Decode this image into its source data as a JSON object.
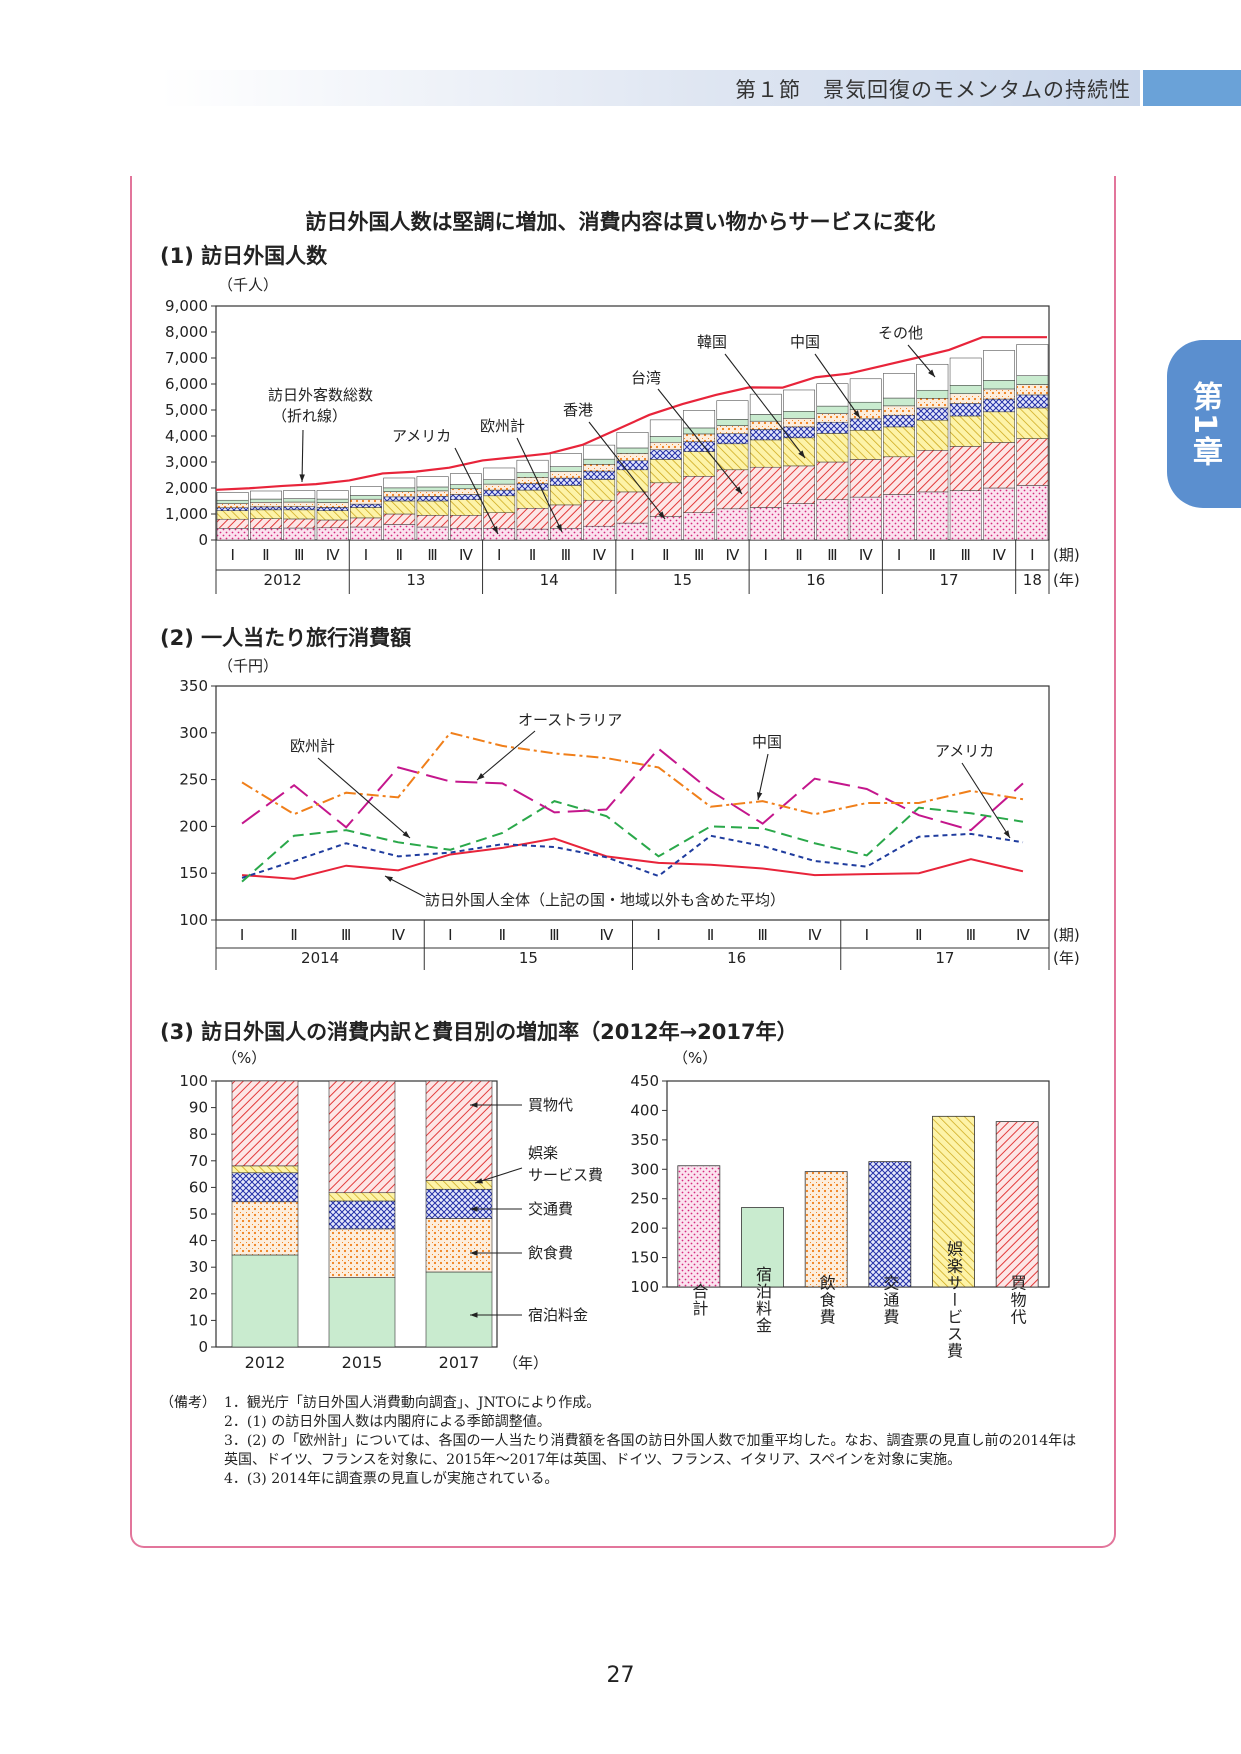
{
  "header": {
    "section": "第１節　景気回復のモメンタムの持続性",
    "chapter_tab": "第1章"
  },
  "figure": {
    "title": "訪日外国人数は堅調に増加、消費内容は買い物からサービスに変化",
    "sec1": "(1) 訪日外国人数",
    "sec2": "(2) 一人当たり旅行消費額",
    "sec3": "(3) 訪日外国人の消費内訳と費目別の増加率（2012年→2017年）"
  },
  "chart_data": [
    {
      "type": "bar",
      "stacked": true,
      "unit": "（千人）",
      "ylim": [
        0,
        9000
      ],
      "yticks": [
        0,
        1000,
        2000,
        3000,
        4000,
        5000,
        6000,
        7000,
        8000,
        9000
      ],
      "ytick_labels": [
        "0",
        "1,000",
        "2,000",
        "3,000",
        "4,000",
        "5,000",
        "6,000",
        "7,000",
        "8,000",
        "9,000"
      ],
      "quarters": [
        "Ⅰ",
        "Ⅱ",
        "Ⅲ",
        "Ⅳ",
        "Ⅰ",
        "Ⅱ",
        "Ⅲ",
        "Ⅳ",
        "Ⅰ",
        "Ⅱ",
        "Ⅲ",
        "Ⅳ",
        "Ⅰ",
        "Ⅱ",
        "Ⅲ",
        "Ⅳ",
        "Ⅰ",
        "Ⅱ",
        "Ⅲ",
        "Ⅳ",
        "Ⅰ",
        "Ⅱ",
        "Ⅲ",
        "Ⅳ",
        "Ⅰ"
      ],
      "years": [
        {
          "label": "2012",
          "span": 4
        },
        {
          "label": "13",
          "span": 4
        },
        {
          "label": "14",
          "span": 4
        },
        {
          "label": "15",
          "span": 4
        },
        {
          "label": "16",
          "span": 4
        },
        {
          "label": "17",
          "span": 4
        },
        {
          "label": "18",
          "span": 1
        }
      ],
      "x_unit_quarter": "(期)",
      "x_unit_year": "(年)",
      "series": [
        {
          "name": "その他",
          "pattern": "white",
          "values": [
            300,
            310,
            320,
            330,
            350,
            380,
            400,
            420,
            450,
            480,
            510,
            540,
            600,
            640,
            680,
            720,
            780,
            820,
            860,
            900,
            950,
            1000,
            1050,
            1150,
            1200
          ]
        },
        {
          "name": "欧州計",
          "pattern": "green",
          "values": [
            120,
            125,
            130,
            135,
            140,
            145,
            150,
            160,
            170,
            180,
            190,
            200,
            210,
            220,
            230,
            240,
            260,
            270,
            280,
            290,
            300,
            310,
            320,
            330,
            340
          ]
        },
        {
          "name": "アメリカ",
          "pattern": "orange",
          "values": [
            170,
            175,
            180,
            185,
            190,
            200,
            210,
            220,
            230,
            240,
            250,
            260,
            280,
            290,
            300,
            310,
            320,
            330,
            340,
            350,
            360,
            370,
            380,
            390,
            400
          ]
        },
        {
          "name": "香港",
          "pattern": "blue",
          "values": [
            110,
            115,
            120,
            125,
            130,
            160,
            180,
            200,
            220,
            250,
            280,
            320,
            350,
            370,
            380,
            390,
            400,
            420,
            430,
            440,
            450,
            470,
            480,
            490,
            500
          ]
        },
        {
          "name": "台湾",
          "pattern": "yellow",
          "values": [
            330,
            340,
            350,
            360,
            400,
            500,
            550,
            600,
            650,
            700,
            750,
            800,
            850,
            900,
            950,
            1000,
            1050,
            1080,
            1100,
            1120,
            1150,
            1160,
            1170,
            1180,
            1180
          ]
        },
        {
          "name": "中国",
          "pattern": "red",
          "values": [
            350,
            370,
            350,
            300,
            350,
            400,
            450,
            500,
            600,
            800,
            900,
            1000,
            1200,
            1300,
            1400,
            1500,
            1550,
            1450,
            1450,
            1450,
            1450,
            1600,
            1700,
            1750,
            1800
          ]
        },
        {
          "name": "韓国",
          "pattern": "pink",
          "values": [
            450,
            450,
            460,
            470,
            500,
            600,
            500,
            450,
            450,
            420,
            450,
            530,
            650,
            900,
            1050,
            1200,
            1250,
            1400,
            1550,
            1650,
            1750,
            1850,
            1900,
            2000,
            2100
          ]
        }
      ],
      "total": {
        "name": "訪日外客数総数（折れ線）",
        "values": [
          1930,
          1990,
          2080,
          2150,
          2290,
          2560,
          2630,
          2780,
          3060,
          3190,
          3330,
          3660,
          4230,
          4810,
          5230,
          5580,
          5870,
          5860,
          6260,
          6400,
          6700,
          7000,
          7310,
          7800,
          7800
        ]
      },
      "annotations": [
        "訪日外客数総数\n（折れ線）",
        "アメリカ",
        "欧州計",
        "香港",
        "台湾",
        "韓国",
        "中国",
        "その他"
      ]
    },
    {
      "type": "line",
      "unit": "（千円）",
      "ylim": [
        100,
        350
      ],
      "yticks": [
        100,
        150,
        200,
        250,
        300,
        350
      ],
      "quarters": [
        "Ⅰ",
        "Ⅱ",
        "Ⅲ",
        "Ⅳ",
        "Ⅰ",
        "Ⅱ",
        "Ⅲ",
        "Ⅳ",
        "Ⅰ",
        "Ⅱ",
        "Ⅲ",
        "Ⅳ",
        "Ⅰ",
        "Ⅱ",
        "Ⅲ",
        "Ⅳ"
      ],
      "years": [
        {
          "label": "2014",
          "span": 4
        },
        {
          "label": "15",
          "span": 4
        },
        {
          "label": "16",
          "span": 4
        },
        {
          "label": "17",
          "span": 4
        }
      ],
      "x_unit_quarter": "(期)",
      "x_unit_year": "(年)",
      "series": [
        {
          "name": "訪日外国人全体（上記の国・地域以外も含めた平均）",
          "color": "#e8243a",
          "dash": "",
          "values": [
            148,
            144,
            158,
            153,
            170,
            177,
            187,
            168,
            161,
            159,
            155,
            148,
            149,
            150,
            165,
            152
          ]
        },
        {
          "name": "アメリカ",
          "color": "#1f3c9e",
          "dash": "5,4",
          "values": [
            145,
            163,
            182,
            168,
            172,
            181,
            178,
            167,
            147,
            190,
            179,
            163,
            157,
            189,
            192,
            183
          ]
        },
        {
          "name": "欧州計",
          "color": "#2aa84a",
          "dash": "11,6",
          "values": [
            141,
            190,
            196,
            183,
            175,
            193,
            227,
            211,
            168,
            200,
            198,
            182,
            169,
            220,
            214,
            205
          ]
        },
        {
          "name": "中国",
          "color": "#c4168c",
          "dash": "22,8",
          "values": [
            203,
            244,
            199,
            263,
            248,
            246,
            215,
            218,
            283,
            238,
            203,
            251,
            240,
            212,
            196,
            246
          ]
        },
        {
          "name": "オーストラリア",
          "color": "#f07f1a",
          "dash": "12,4,3,4",
          "values": [
            247,
            213,
            236,
            231,
            300,
            286,
            278,
            273,
            263,
            221,
            227,
            213,
            225,
            225,
            238,
            229
          ]
        }
      ],
      "annotations": [
        "オーストラリア",
        "欧州計",
        "中国",
        "アメリカ",
        "訪日外国人全体（上記の国・地域以外も含めた平均）"
      ]
    },
    {
      "type": "bar",
      "stacked": true,
      "unit": "（%）",
      "ylim": [
        0,
        100
      ],
      "yticks": [
        0,
        10,
        20,
        30,
        40,
        50,
        60,
        70,
        80,
        90,
        100
      ],
      "categories": [
        "2012",
        "2015",
        "2017"
      ],
      "x_unit": "（年）",
      "series": [
        {
          "name": "宿泊料金",
          "pattern": "green",
          "values": [
            34.6,
            26.1,
            28.2
          ]
        },
        {
          "name": "飲食費",
          "pattern": "orange",
          "values": [
            20.0,
            18.3,
            20.1
          ]
        },
        {
          "name": "交通費",
          "pattern": "blue",
          "values": [
            10.9,
            10.5,
            11.0
          ]
        },
        {
          "name": "娯楽サービス費",
          "pattern": "yellow",
          "values": [
            2.6,
            3.1,
            3.3
          ]
        },
        {
          "name": "買物代",
          "pattern": "red",
          "values": [
            31.9,
            42.0,
            37.4
          ]
        }
      ],
      "labels": [
        "買物代",
        "娯楽\nサービス費",
        "交通費",
        "飲食費",
        "宿泊料金"
      ]
    },
    {
      "type": "bar",
      "unit": "（%）",
      "ylim": [
        100,
        450
      ],
      "yticks": [
        100,
        150,
        200,
        250,
        300,
        350,
        400,
        450
      ],
      "categories": [
        "合計",
        "宿泊料金",
        "飲食費",
        "交通費",
        "娯楽サービス費",
        "買物代"
      ],
      "patterns": [
        "pink",
        "green",
        "orange",
        "blue",
        "yellow",
        "red"
      ],
      "values": [
        306,
        235,
        296,
        313,
        390,
        381
      ]
    }
  ],
  "notes": [
    {
      "lead": "（備考）",
      "text": "1．観光庁「訪日外国人消費動向調査」、JNTOにより作成。"
    },
    {
      "lead": "",
      "text": "2．(1) の訪日外国人数は内閣府による季節調整値。"
    },
    {
      "lead": "",
      "text": "3．(2) の「欧州計」については、各国の一人当たり消費額を各国の訪日外国人数で加重平均した。なお、調査票の見直し前の2014年は英国、ドイツ、フランスを対象に、2015年〜2017年は英国、ドイツ、フランス、イタリア、スペインを対象に実施。"
    },
    {
      "lead": "",
      "text": "4．(3) 2014年に調査票の見直しが実施されている。"
    }
  ],
  "page_number": "27"
}
